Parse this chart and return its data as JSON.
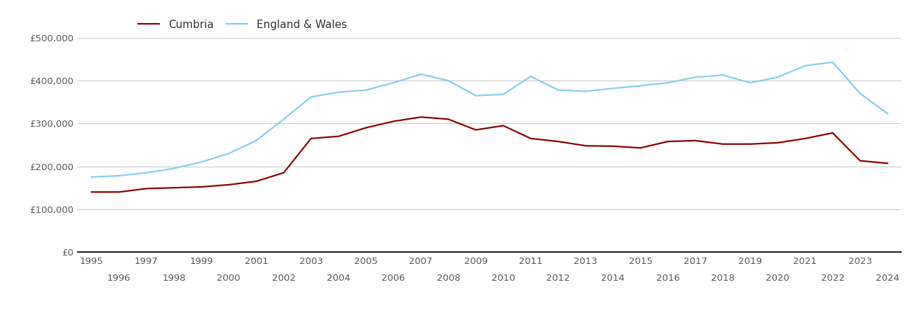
{
  "cumbria_years": [
    1995,
    1996,
    1997,
    1998,
    1999,
    2000,
    2001,
    2002,
    2003,
    2004,
    2005,
    2006,
    2007,
    2008,
    2009,
    2010,
    2011,
    2012,
    2013,
    2014,
    2015,
    2016,
    2017,
    2018,
    2019,
    2020,
    2021,
    2022,
    2023,
    2024
  ],
  "cumbria_values": [
    140000,
    140000,
    148000,
    150000,
    152000,
    157000,
    165000,
    185000,
    265000,
    270000,
    290000,
    305000,
    315000,
    310000,
    285000,
    295000,
    265000,
    258000,
    248000,
    247000,
    243000,
    258000,
    260000,
    252000,
    252000,
    255000,
    265000,
    278000,
    213000,
    207000
  ],
  "england_years": [
    1995,
    1996,
    1997,
    1998,
    1999,
    2000,
    2001,
    2002,
    2003,
    2004,
    2005,
    2006,
    2007,
    2008,
    2009,
    2010,
    2011,
    2012,
    2013,
    2014,
    2015,
    2016,
    2017,
    2018,
    2019,
    2020,
    2021,
    2022,
    2023,
    2024
  ],
  "england_values": [
    175000,
    178000,
    185000,
    195000,
    210000,
    230000,
    260000,
    310000,
    362000,
    373000,
    378000,
    395000,
    415000,
    400000,
    365000,
    368000,
    410000,
    378000,
    375000,
    382000,
    388000,
    395000,
    408000,
    413000,
    395000,
    408000,
    435000,
    443000,
    370000,
    323000
  ],
  "cumbria_color": "#8B0000",
  "england_color": "#87CEEB",
  "background_color": "#ffffff",
  "grid_color": "#cccccc",
  "ylim": [
    0,
    500000
  ],
  "yticks": [
    0,
    100000,
    200000,
    300000,
    400000,
    500000
  ],
  "ytick_labels": [
    "£0",
    "£100,000",
    "£200,000",
    "£300,000",
    "£400,000",
    "£500,000"
  ],
  "legend_cumbria": "Cumbria",
  "legend_england": "England & Wales",
  "line_width": 1.6,
  "odd_years": [
    1995,
    1997,
    1999,
    2001,
    2003,
    2005,
    2007,
    2009,
    2011,
    2013,
    2015,
    2017,
    2019,
    2021,
    2023
  ],
  "even_years": [
    1996,
    1998,
    2000,
    2002,
    2004,
    2006,
    2008,
    2010,
    2012,
    2014,
    2016,
    2018,
    2020,
    2022,
    2024
  ]
}
